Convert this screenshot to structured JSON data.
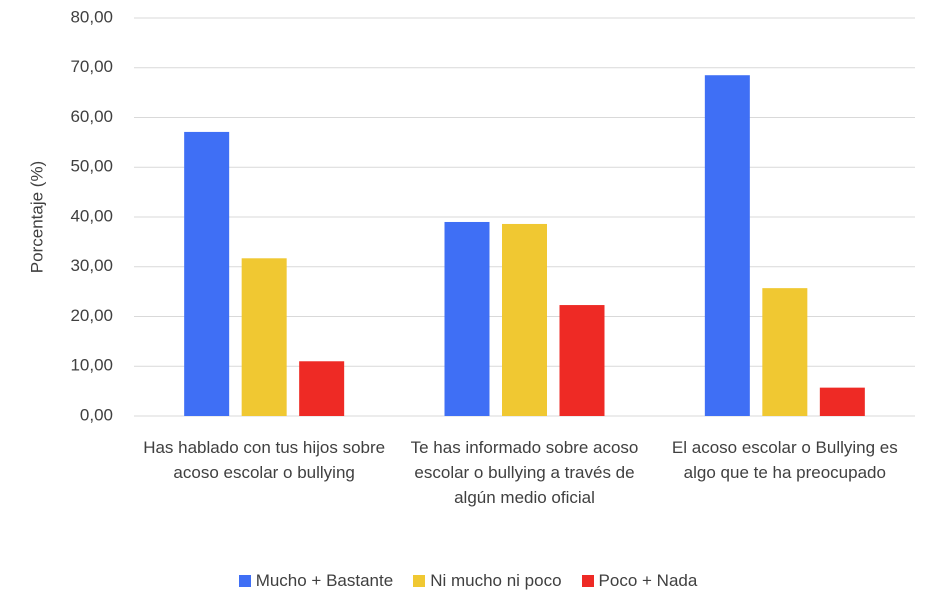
{
  "chart_data": {
    "type": "bar",
    "y_label": "Porcentaje (%)",
    "categories": [
      "Has hablado con tus hijos sobre acoso escolar o bullying",
      "Te has informado sobre acoso escolar o bullying a través de algún medio oficial",
      "El acoso escolar o Bullying es algo que te ha preocupado"
    ],
    "series": [
      {
        "name": "Mucho + Bastante",
        "color": "#3f6ff5",
        "values": [
          57.1,
          39.0,
          68.5
        ]
      },
      {
        "name": "Ni mucho ni poco",
        "color": "#f0c832",
        "values": [
          31.7,
          38.6,
          25.7
        ]
      },
      {
        "name": "Poco + Nada",
        "color": "#ee2a25",
        "values": [
          11.0,
          22.3,
          5.7
        ]
      }
    ],
    "ylim": [
      0,
      80
    ],
    "yticks": [
      {
        "value": 0,
        "label": "0,00"
      },
      {
        "value": 10,
        "label": "10,00"
      },
      {
        "value": 20,
        "label": "20,00"
      },
      {
        "value": 30,
        "label": "30,00"
      },
      {
        "value": 40,
        "label": "40,00"
      },
      {
        "value": 50,
        "label": "50,00"
      },
      {
        "value": 60,
        "label": "60,00"
      },
      {
        "value": 70,
        "label": "70,00"
      },
      {
        "value": 80,
        "label": "80,00"
      }
    ],
    "grid": true,
    "legend": "bottom"
  }
}
